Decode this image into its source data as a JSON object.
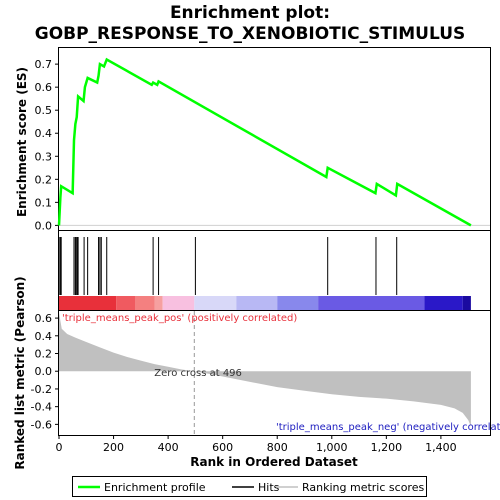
{
  "chart_data": {
    "type": "line",
    "title_line1": "Enrichment plot:",
    "title_line2": "GOBP_RESPONSE_TO_XENOBIOTIC_STIMULUS",
    "xlabel": "Rank in Ordered Dataset",
    "es_ylabel": "Enrichment score (ES)",
    "metric_ylabel": "Ranked list metric (Pearson)",
    "xlim": [
      0,
      1580
    ],
    "x_ticks": [
      0,
      200,
      400,
      600,
      800,
      1000,
      1200,
      1400
    ],
    "x_tick_labels": [
      "0",
      "200",
      "400",
      "600",
      "800",
      "1,000",
      "1,200",
      "1,400"
    ],
    "es_ylim": [
      -0.02,
      0.77
    ],
    "es_ticks": [
      0.0,
      0.1,
      0.2,
      0.3,
      0.4,
      0.5,
      0.6,
      0.7
    ],
    "es_tick_labels": [
      "0.0",
      "0.1",
      "0.2",
      "0.3",
      "0.4",
      "0.5",
      "0.6",
      "0.7"
    ],
    "metric_ylim": [
      -0.72,
      0.68
    ],
    "metric_ticks": [
      0.6,
      0.4,
      0.2,
      0.0,
      -0.2,
      -0.4,
      -0.6
    ],
    "metric_tick_labels": [
      "0.6",
      "0.4",
      "0.2",
      "0.0",
      "-0.2",
      "-0.4",
      "-0.6"
    ],
    "n_genes": 1510,
    "enrichment_profile": {
      "name": "Enrichment profile",
      "color": "#00ff00",
      "x": [
        0,
        5,
        8,
        50,
        55,
        60,
        65,
        70,
        90,
        95,
        105,
        140,
        145,
        150,
        165,
        175,
        340,
        345,
        360,
        365,
        980,
        985,
        1160,
        1165,
        1235,
        1240,
        1510
      ],
      "y": [
        0.0,
        0.12,
        0.17,
        0.14,
        0.37,
        0.44,
        0.47,
        0.56,
        0.54,
        0.6,
        0.64,
        0.62,
        0.65,
        0.7,
        0.69,
        0.72,
        0.61,
        0.62,
        0.61,
        0.625,
        0.21,
        0.25,
        0.14,
        0.18,
        0.13,
        0.18,
        0.0
      ]
    },
    "hits": {
      "name": "Hits",
      "color": "#000000",
      "positions": [
        3,
        5,
        8,
        55,
        60,
        63,
        67,
        70,
        92,
        105,
        145,
        150,
        155,
        175,
        345,
        365,
        500,
        985,
        1162,
        1238
      ]
    },
    "ranking_metric": {
      "name": "Ranking metric scores",
      "color": "#c0c0c0",
      "x": [
        0,
        10,
        30,
        60,
        100,
        150,
        200,
        250,
        300,
        350,
        400,
        450,
        496,
        550,
        600,
        700,
        800,
        900,
        1000,
        1100,
        1200,
        1300,
        1400,
        1450,
        1480,
        1500,
        1510
      ],
      "y": [
        0.66,
        0.48,
        0.42,
        0.38,
        0.33,
        0.27,
        0.21,
        0.16,
        0.12,
        0.08,
        0.05,
        0.02,
        0.0,
        -0.03,
        -0.06,
        -0.12,
        -0.18,
        -0.22,
        -0.26,
        -0.29,
        -0.31,
        -0.34,
        -0.38,
        -0.42,
        -0.47,
        -0.55,
        -0.62
      ]
    },
    "color_bar": {
      "stops": [
        {
          "from": 0,
          "to": 210,
          "color": "#e8303a"
        },
        {
          "from": 210,
          "to": 280,
          "color": "#f05a60"
        },
        {
          "from": 280,
          "to": 350,
          "color": "#f48080"
        },
        {
          "from": 350,
          "to": 380,
          "color": "#f6a0a0"
        },
        {
          "from": 380,
          "to": 496,
          "color": "#f8c0e0"
        },
        {
          "from": 496,
          "to": 650,
          "color": "#d8d8f8"
        },
        {
          "from": 650,
          "to": 800,
          "color": "#b8b8f4"
        },
        {
          "from": 800,
          "to": 950,
          "color": "#8888ec"
        },
        {
          "from": 950,
          "to": 1340,
          "color": "#6a5ae4"
        },
        {
          "from": 1340,
          "to": 1480,
          "color": "#2a18c8"
        },
        {
          "from": 1480,
          "to": 1510,
          "color": "#1a0aa0"
        }
      ]
    },
    "annotations": {
      "pos_label": "'triple_means_peak_pos' (positively correlated)",
      "pos_color": "#e8303a",
      "neg_label": "'triple_means_peak_neg' (negatively correlat",
      "neg_color": "#2020c0",
      "zero_cross_label": "Zero cross at 496",
      "zero_cross_x": 496
    },
    "legend": {
      "placement": "bottom",
      "items": [
        "Enrichment profile",
        "Hits",
        "Ranking metric scores"
      ]
    }
  }
}
